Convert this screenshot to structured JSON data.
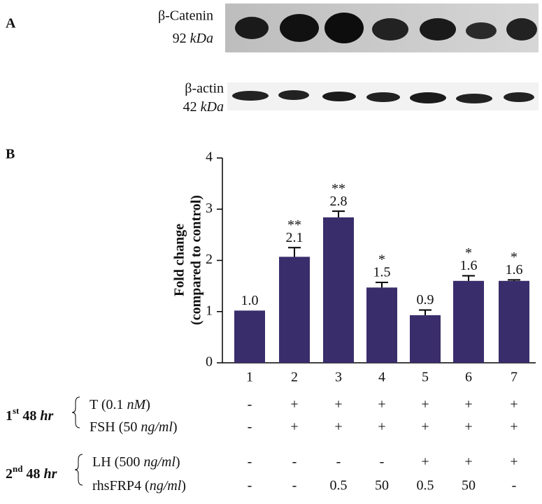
{
  "panels": {
    "a": {
      "label": "A",
      "blots": [
        {
          "protein": "β-Catenin",
          "size": "92",
          "unit": "kDa"
        },
        {
          "protein": "β-actin",
          "size": "42",
          "unit": "kDa"
        }
      ]
    },
    "b": {
      "label": "B"
    }
  },
  "chart_data": {
    "type": "bar",
    "categories": [
      "1",
      "2",
      "3",
      "4",
      "5",
      "6",
      "7"
    ],
    "values": [
      1.02,
      2.07,
      2.84,
      1.47,
      0.93,
      1.6,
      1.6
    ],
    "errors": [
      null,
      0.18,
      0.12,
      0.1,
      0.1,
      0.1,
      0.02
    ],
    "value_labels": [
      "1.0",
      "2.1",
      "2.8",
      "1.5",
      "0.9",
      "1.6",
      "1.6"
    ],
    "significance": [
      null,
      "**",
      "**",
      "*",
      null,
      "*",
      "*"
    ],
    "color": "#3a2d6c",
    "ylim": [
      0,
      4
    ],
    "yticks": [
      0,
      1,
      2,
      3,
      4
    ],
    "y_label": [
      "Fold change",
      "(compared to control)"
    ]
  },
  "treatments": {
    "groups": [
      {
        "number": "1",
        "suffix": "st",
        "text": "48",
        "unit": "hr",
        "rows": [
          {
            "label": {
              "prefix": "T (0.1",
              "unit": "nM",
              "suffix": ")"
            },
            "cells": [
              "-",
              "+",
              "+",
              "+",
              "+",
              "+",
              "+"
            ]
          },
          {
            "label": {
              "prefix": "FSH (50",
              "unit": "ng/ml",
              "suffix": ")"
            },
            "cells": [
              "-",
              "+",
              "+",
              "+",
              "+",
              "+",
              "+"
            ]
          }
        ]
      },
      {
        "number": "2",
        "suffix": "nd",
        "text": "48",
        "unit": "hr",
        "rows": [
          {
            "label": {
              "prefix": "LH (500",
              "unit": "ng/ml",
              "suffix": ")"
            },
            "cells": [
              "-",
              "-",
              "-",
              "-",
              "+",
              "+",
              "+"
            ]
          },
          {
            "label": {
              "prefix": "rhsFRP4 (",
              "unit": "ng/ml",
              "suffix": ")"
            },
            "cells": [
              "-",
              "-",
              "0.5",
              "50",
              "0.5",
              "50",
              "-"
            ]
          }
        ]
      }
    ]
  }
}
